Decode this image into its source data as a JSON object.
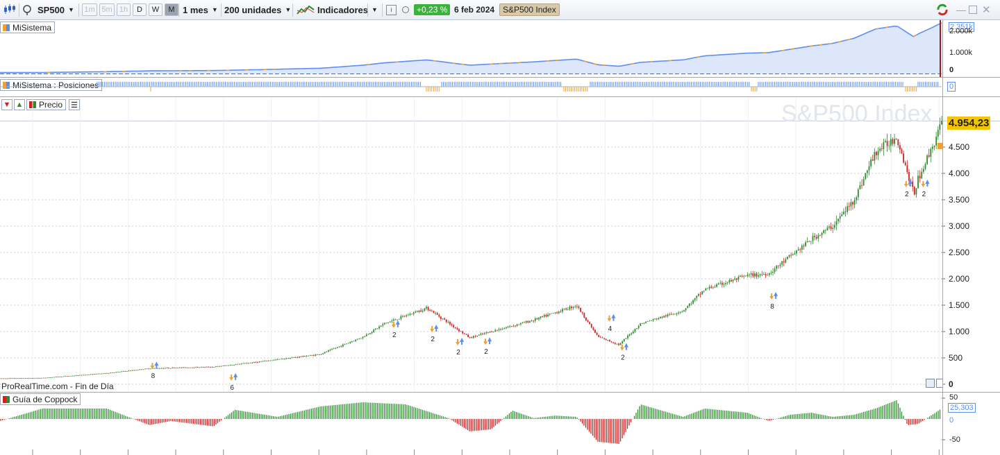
{
  "toolbar": {
    "symbol": "SP500",
    "timeframes": [
      "1m",
      "5m",
      "1h",
      "D",
      "W",
      "M"
    ],
    "timeframe_selected": "M",
    "period": "1 mes",
    "units": "200 unidades",
    "indicators_label": "Indicadores",
    "change": "+0,23 %",
    "date": "6 feb 2024",
    "index_name": "S&P500 Index",
    "icons": [
      "candlestick-icon",
      "broker-icon",
      "info-icon",
      "circle-icon",
      "refresh-icon",
      "minimize-icon",
      "maximize-icon",
      "close-icon"
    ]
  },
  "equity_pane": {
    "label": "MiSistema",
    "last_value": "2.351k",
    "ticks": [
      "2.000k",
      "1.000k",
      "0"
    ]
  },
  "positions_pane": {
    "label": "MiSistema : Posiciones",
    "value": "0"
  },
  "price_pane": {
    "label": "Precio",
    "watermark": "S&P500 Index",
    "last_price": "4.954,23",
    "ticks": [
      "4.500",
      "4.000",
      "3.500",
      "3.000",
      "2.500",
      "2.000",
      "1.500",
      "1.000",
      "500",
      "0"
    ],
    "footer": "ProRealTime.com - Fin de Día",
    "signals": [
      "8",
      "6",
      "2",
      "2",
      "2",
      "2",
      "4",
      "2",
      "8",
      "2",
      "2"
    ]
  },
  "coppock_pane": {
    "label": "Guía de Coppock",
    "last_value": "25,303",
    "ticks": [
      "50",
      "0",
      "-50"
    ]
  },
  "colors": {
    "up": "#2e8b2e",
    "down": "#cc2222",
    "equity_line": "#5b8ef0",
    "equity_fill": "#dde7fb",
    "drawdown": "#f0a030",
    "price_badge": "#f5c400"
  },
  "chart_data": {
    "type": "line",
    "title": "S&P500 Index",
    "ylabel": "",
    "ylim": [
      0,
      5000
    ],
    "y_ticks": [
      0,
      500,
      1000,
      1500,
      2000,
      2500,
      3000,
      3500,
      4000,
      4500
    ],
    "series": [
      {
        "name": "S&P500 Index",
        "x": [
          1980,
          1982,
          1985,
          1987,
          1990,
          1992,
          1995,
          1997,
          1998,
          2000,
          2002,
          2003,
          2005,
          2007,
          2008,
          2009,
          2010,
          2012,
          2013,
          2015,
          2016,
          2018,
          2019,
          2020,
          2021,
          2022,
          2022.8,
          2023,
          2023.6,
          2024.1
        ],
        "values": [
          110,
          120,
          210,
          300,
          330,
          420,
          570,
          900,
          1150,
          1450,
          880,
          1000,
          1220,
          1500,
          900,
          750,
          1150,
          1400,
          1800,
          2060,
          2100,
          2750,
          3000,
          3500,
          4400,
          4700,
          3600,
          3900,
          4450,
          4954
        ]
      }
    ],
    "coppock": {
      "x": [
        1980,
        1982,
        1985,
        1987,
        1988,
        1990,
        1991,
        1993,
        1995,
        1997,
        1999,
        2001,
        2002,
        2003,
        2004,
        2005,
        2006,
        2007,
        2008,
        2009,
        2010,
        2011,
        2012,
        2013,
        2015,
        2016,
        2017,
        2018,
        2019,
        2020,
        2021,
        2022,
        2022.5,
        2023,
        2024.1
      ],
      "values": [
        -5,
        25,
        25,
        -15,
        -5,
        -18,
        22,
        5,
        30,
        40,
        35,
        2,
        -30,
        -25,
        20,
        2,
        8,
        5,
        -55,
        -60,
        35,
        20,
        5,
        25,
        15,
        -5,
        10,
        15,
        5,
        10,
        25,
        45,
        -15,
        -12,
        25
      ]
    }
  }
}
